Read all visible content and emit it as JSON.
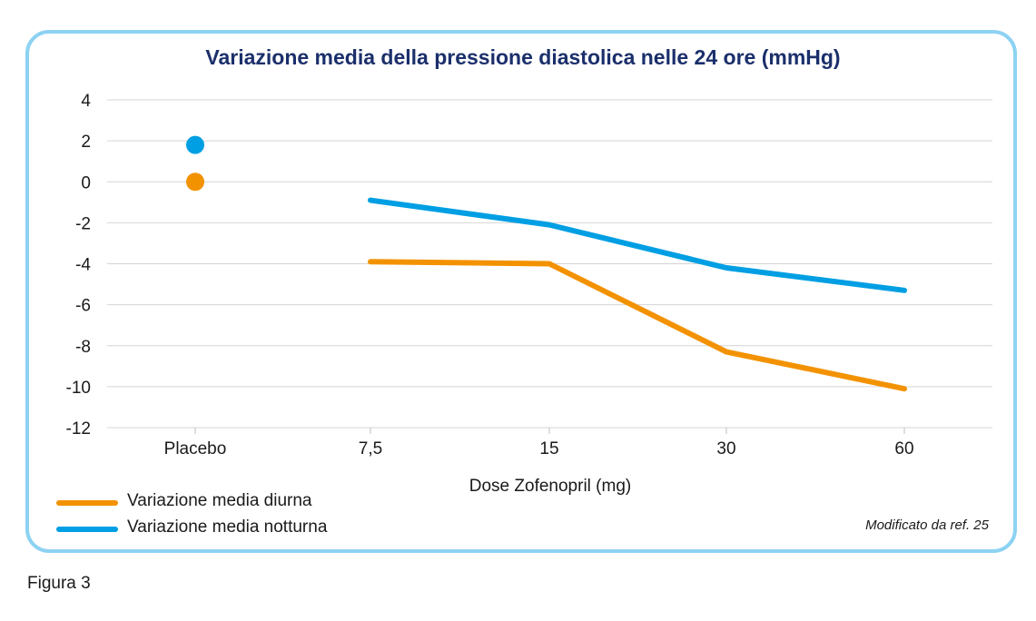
{
  "figure": {
    "title": "Variazione media della pressione diastolica nelle 24 ore (mmHg)",
    "source_note": "Modificato da ref. 25",
    "caption": "Figura 3"
  },
  "colors": {
    "frame": "#8dd2f3",
    "title": "#1b2f6b",
    "diurna": "#f39200",
    "notturna": "#009fe3",
    "grid": "#d4d4d4"
  },
  "chart_data": {
    "type": "line",
    "title": "Variazione media della pressione diastolica nelle 24 ore (mmHg)",
    "xlabel": "Dose Zofenopril (mg)",
    "ylabel": "",
    "categories": [
      "Placebo",
      "7,5",
      "15",
      "30",
      "60"
    ],
    "ylim": [
      -12,
      4
    ],
    "yticks": [
      4,
      2,
      0,
      -2,
      -4,
      -6,
      -8,
      -10,
      -12
    ],
    "grid": true,
    "legend_position": "bottom-left",
    "series": [
      {
        "name": "Variazione media diurna",
        "color": "#f39200",
        "placebo_marker": 0,
        "values": [
          0,
          -3.9,
          -4.0,
          -8.3,
          -10.1
        ]
      },
      {
        "name": "Variazione media notturna",
        "color": "#009fe3",
        "placebo_marker": 1.8,
        "values": [
          1.8,
          -0.9,
          -2.1,
          -4.2,
          -5.3
        ]
      }
    ]
  }
}
